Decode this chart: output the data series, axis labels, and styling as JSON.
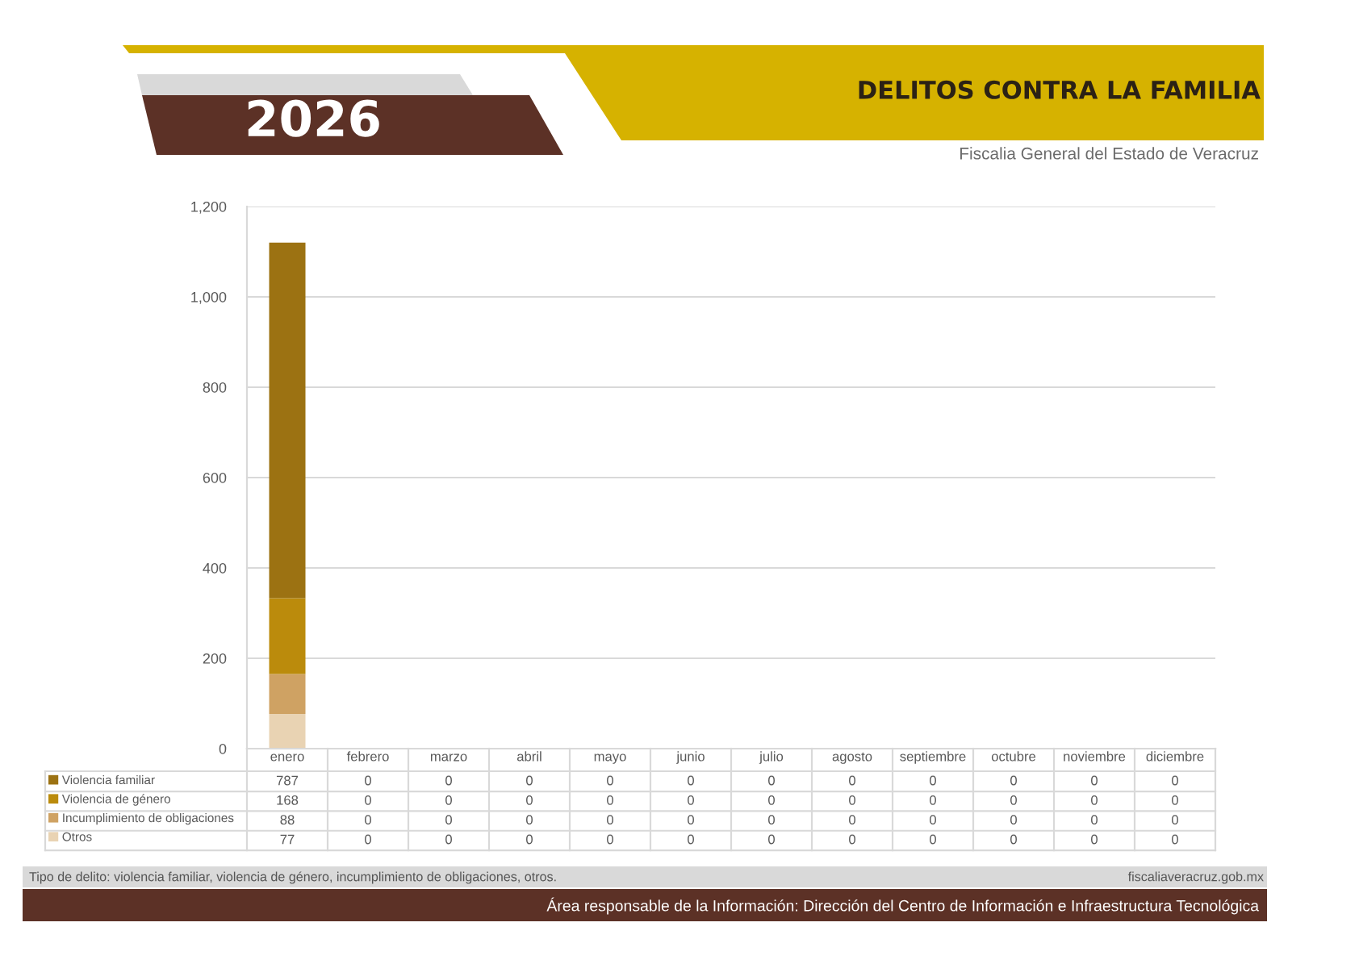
{
  "chart_data": {
    "type": "bar",
    "stacked": true,
    "title": "DELITOS CONTRA LA FAMILIA",
    "subtitle": "Fiscalia General del Estado de Veracruz",
    "categories": [
      "enero",
      "febrero",
      "marzo",
      "abril",
      "mayo",
      "junio",
      "julio",
      "agosto",
      "septiembre",
      "octubre",
      "noviembre",
      "diciembre"
    ],
    "series": [
      {
        "name": "Otros",
        "color": "#e9d3b3",
        "values": [
          77,
          0,
          0,
          0,
          0,
          0,
          0,
          0,
          0,
          0,
          0,
          0
        ]
      },
      {
        "name": "Incumplimiento de obligaciones",
        "color": "#cfa263",
        "values": [
          88,
          0,
          0,
          0,
          0,
          0,
          0,
          0,
          0,
          0,
          0,
          0
        ]
      },
      {
        "name": "Violencia de género",
        "color": "#bb8b0c",
        "values": [
          168,
          0,
          0,
          0,
          0,
          0,
          0,
          0,
          0,
          0,
          0,
          0
        ]
      },
      {
        "name": "Violencia familiar",
        "color": "#9c7212",
        "values": [
          787,
          0,
          0,
          0,
          0,
          0,
          0,
          0,
          0,
          0,
          0,
          0
        ]
      }
    ],
    "ylim": [
      0,
      1200
    ],
    "yticks": [
      0,
      200,
      400,
      600,
      800,
      {
        "value": 1000,
        "label": "1,000"
      },
      {
        "value": 1200,
        "label": "1,200"
      }
    ],
    "grid": "y",
    "legend": "bottom",
    "data_labels": true,
    "annotations": [
      "2026",
      "Tipo de delito: violencia familiar, violencia de género, incumplimiento de obligaciones, otros.",
      "fiscaliaveracruz.gob.mx",
      "Área responsable de la Información: Dirección del Centro de Información e Infraestructura Tecnológica"
    ]
  }
}
